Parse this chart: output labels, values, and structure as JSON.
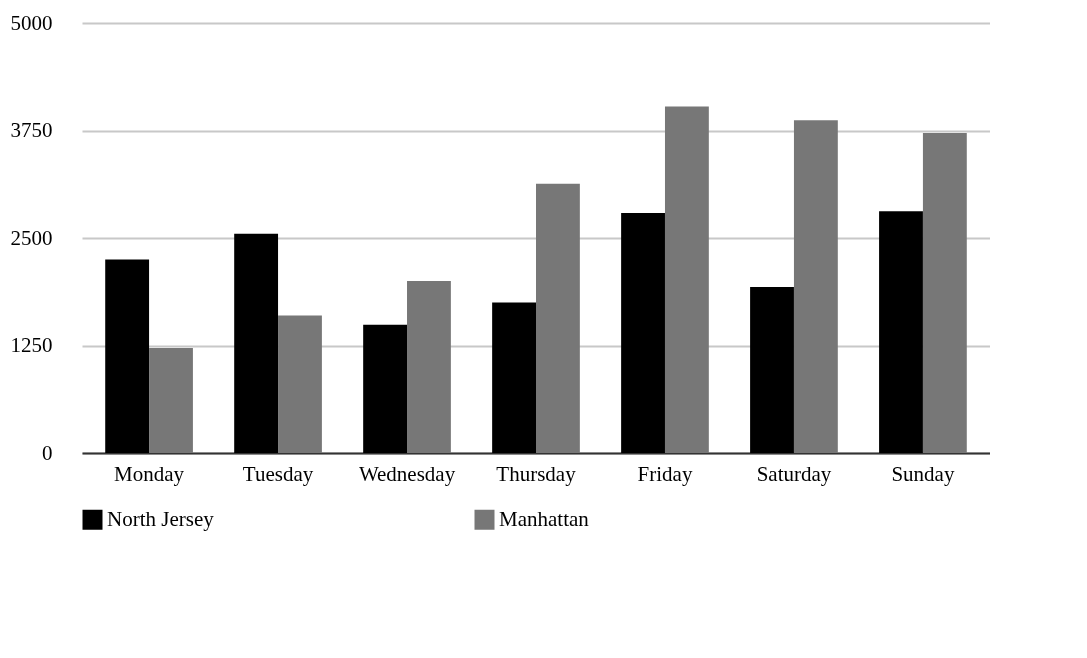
{
  "chart_data": {
    "type": "bar",
    "categories": [
      "Monday",
      "Tuesday",
      "Wednesday",
      "Thursday",
      "Friday",
      "Saturday",
      "Sunday"
    ],
    "series": [
      {
        "name": "North Jersey",
        "color": "#000000",
        "values": [
          2250,
          2550,
          1490,
          1750,
          2790,
          1930,
          2810
        ]
      },
      {
        "name": "Manhattan",
        "color": "#777777",
        "values": [
          1220,
          1600,
          2000,
          3130,
          4030,
          3870,
          3720
        ]
      }
    ],
    "ylim": [
      0,
      5000
    ],
    "yticks": [
      0,
      1250,
      2500,
      3750,
      5000
    ],
    "grid": "y",
    "legend": "bottom"
  }
}
